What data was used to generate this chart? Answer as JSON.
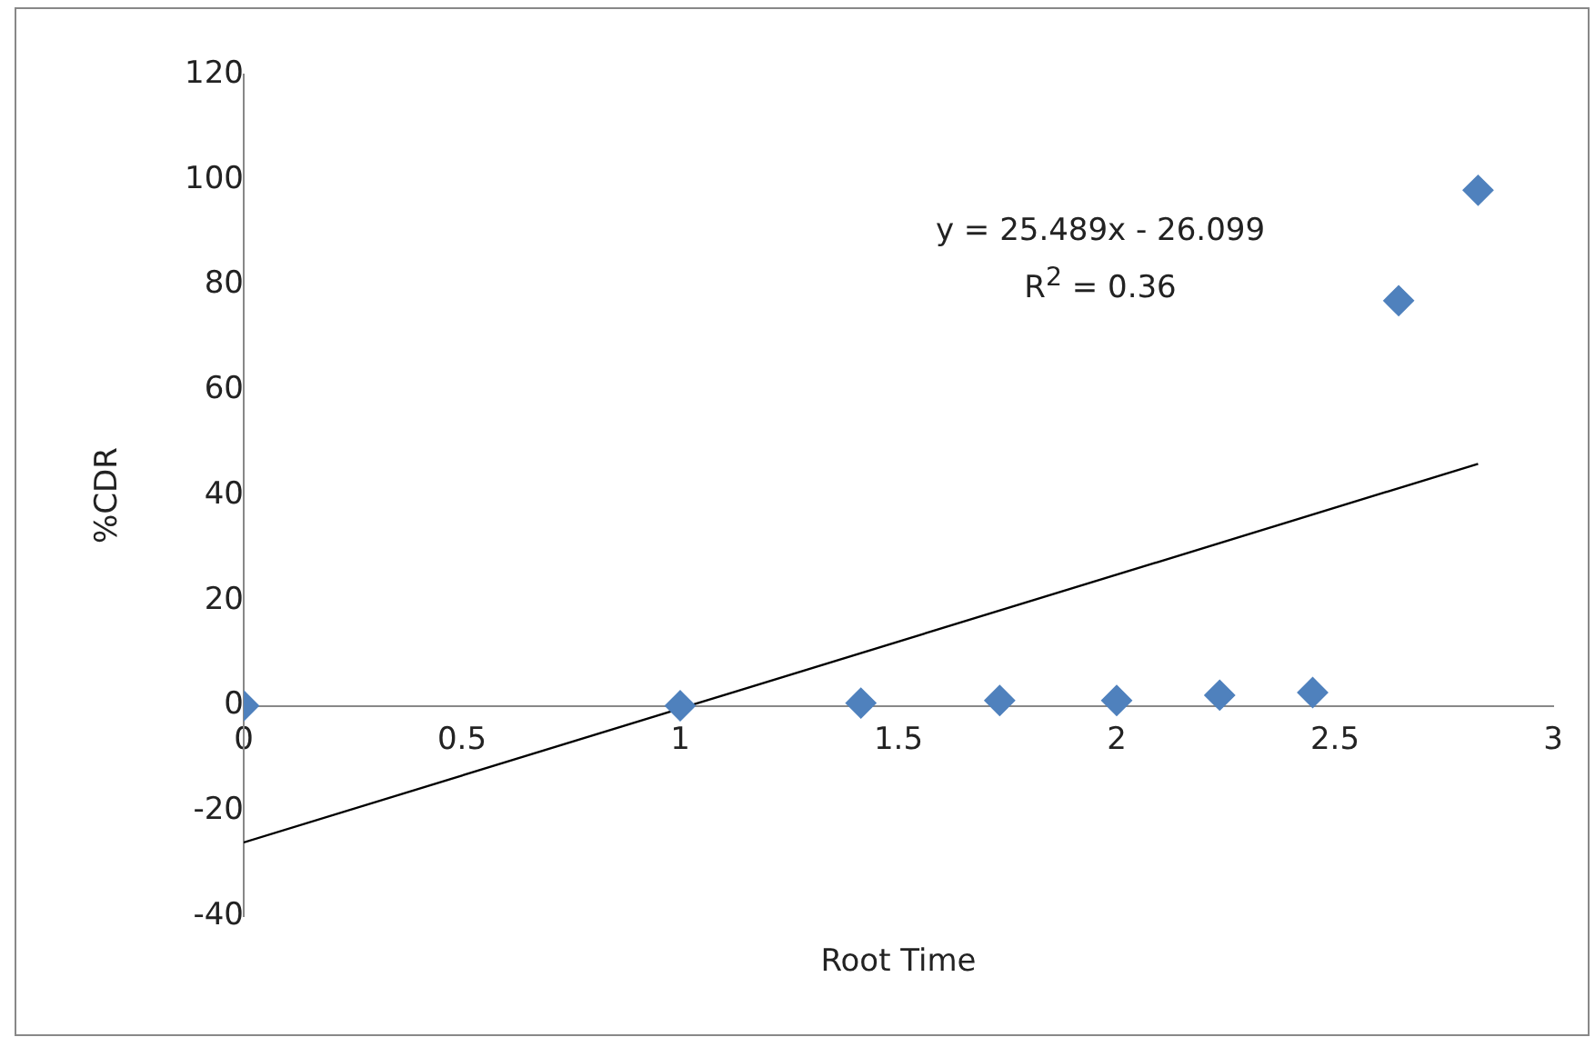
{
  "chart_data": {
    "type": "scatter",
    "xlabel": "Root Time",
    "ylabel": "%CDR",
    "x": [
      0,
      1,
      1.414,
      1.732,
      2,
      2.236,
      2.449,
      2.646,
      2.828
    ],
    "series": [
      {
        "color": "#4f81bd",
        "marker": "diamond",
        "values": [
          0,
          0,
          0.5,
          1,
          1,
          2,
          2.5,
          77,
          98
        ]
      },
      {
        "type": "line",
        "color": "#000000",
        "marker": "none",
        "x": [
          0,
          2.828
        ],
        "values": [
          -26,
          46
        ]
      }
    ],
    "annotations": [
      {
        "text": "y = 25.489x - 26.099"
      },
      {
        "text": "R$^{2}$ = 0.36"
      }
    ],
    "xlim": [
      0,
      3
    ],
    "xticks": [
      0,
      0.5,
      1,
      1.5,
      2,
      2.5,
      3
    ],
    "ylim": [
      -40,
      120
    ],
    "yticks": [
      -40,
      -20,
      0,
      20,
      40,
      60,
      80,
      100,
      120
    ],
    "grid": false,
    "legend": false
  }
}
